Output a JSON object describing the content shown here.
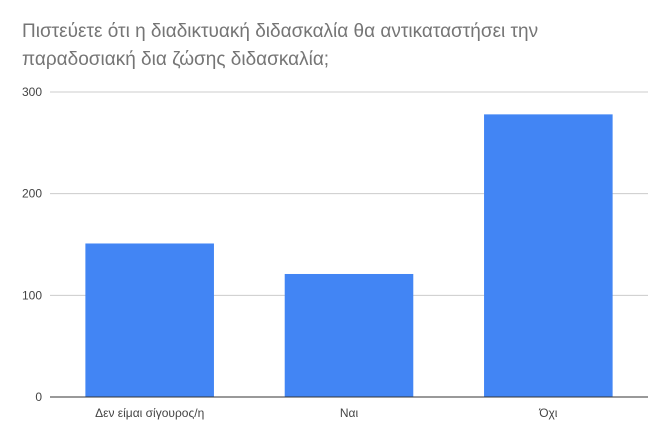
{
  "chart_data": {
    "type": "bar",
    "title": "Πιστεύετε ότι η διαδικτυακή διδασκαλία θα αντικαταστήσει την παραδοσιακή δια ζώσης διδασκαλία;",
    "xlabel": "",
    "ylabel": "",
    "categories": [
      "Δεν είμαι σίγουρος/η",
      "Ναι",
      "Όχι"
    ],
    "values": [
      151,
      121,
      278
    ],
    "ylim": [
      0,
      300
    ],
    "yticks": [
      0,
      100,
      200,
      300
    ],
    "grid": true,
    "legend": "none",
    "bar_color": "#4285f4",
    "grid_color": "#cccccc",
    "axis_color": "#333333"
  }
}
